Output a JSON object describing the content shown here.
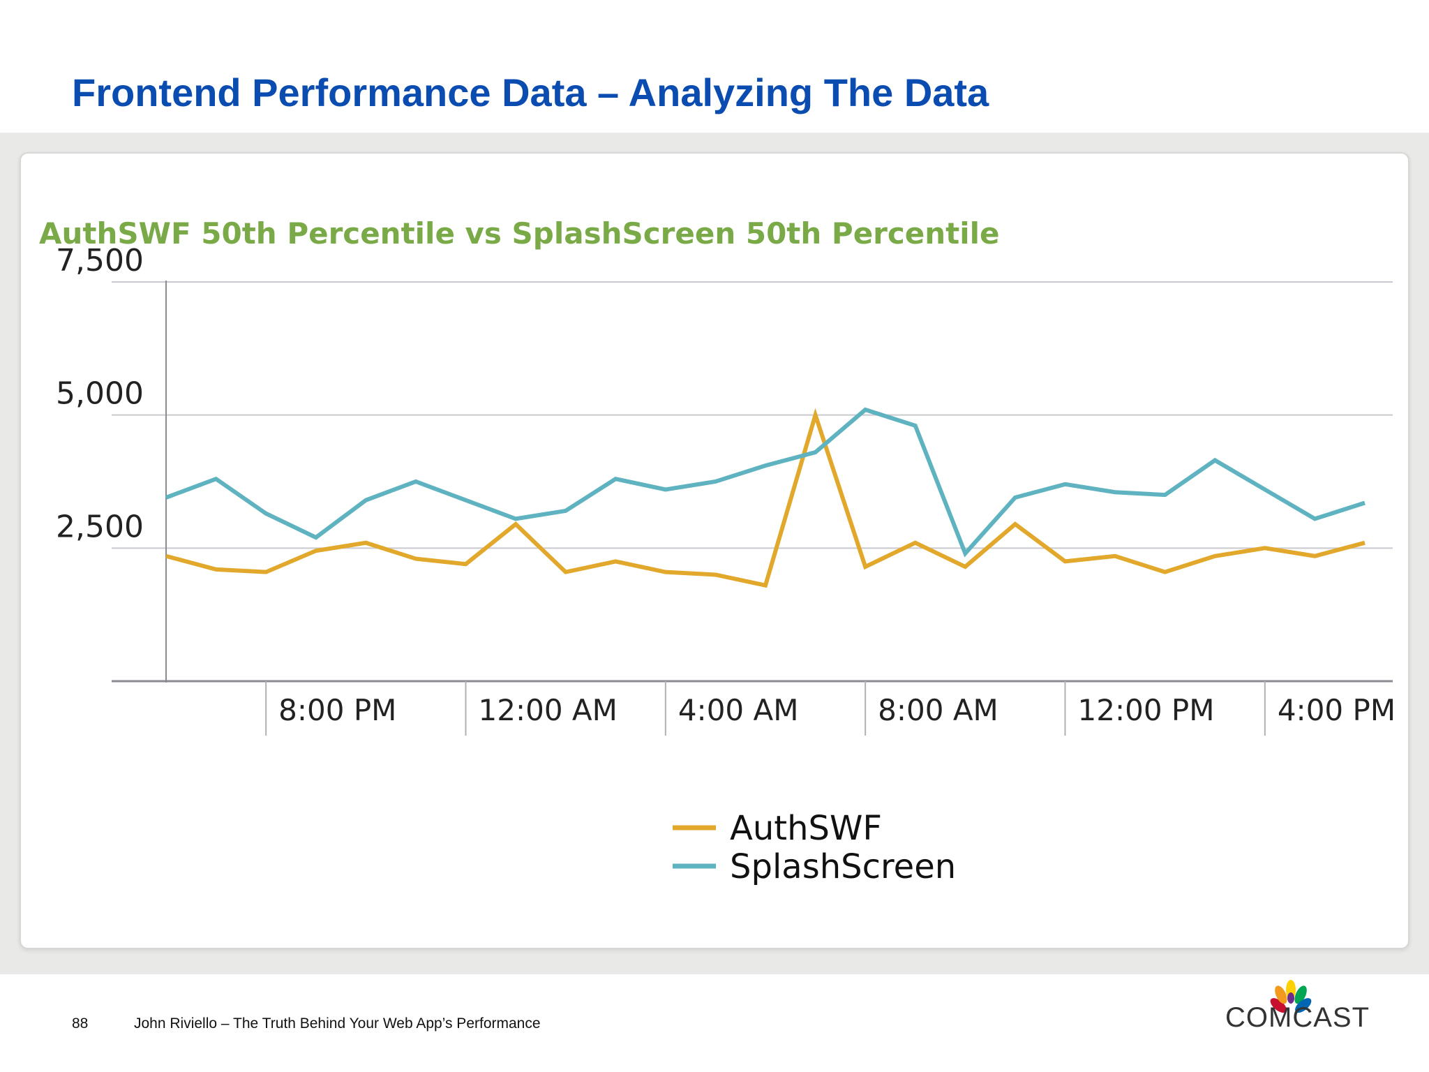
{
  "slide": {
    "title": "Frontend Performance Data – Analyzing The Data",
    "page_number": "88",
    "footer_text": "John Riviello – The Truth Behind Your Web App’s Performance",
    "logo_text": "COMCAST"
  },
  "chart_data": {
    "type": "line",
    "title": "AuthSWF 50th Percentile vs SplashScreen 50th Percentile",
    "xlabel": "",
    "ylabel": "",
    "ylim": [
      0,
      7500
    ],
    "yticks": [
      {
        "value": 2500,
        "label": "2,500"
      },
      {
        "value": 5000,
        "label": "5,000"
      },
      {
        "value": 7500,
        "label": "7,500"
      }
    ],
    "xlim": [
      0,
      24.4
    ],
    "xticks": [
      {
        "value": 2,
        "label": "8:00 PM"
      },
      {
        "value": 6,
        "label": "12:00 AM"
      },
      {
        "value": 10,
        "label": "4:00 AM"
      },
      {
        "value": 14,
        "label": "8:00 AM"
      },
      {
        "value": 18,
        "label": "12:00 PM"
      },
      {
        "value": 22,
        "label": "4:00 PM"
      }
    ],
    "grid": true,
    "legend_position": "bottom-center",
    "colors": {
      "AuthSWF": "#e2a82c",
      "SplashScreen": "#5fb3c0"
    },
    "x": [
      0,
      1,
      2,
      3,
      4,
      5,
      6,
      7,
      8,
      9,
      10,
      11,
      12,
      13,
      14,
      15,
      16,
      17,
      18,
      19,
      20,
      21,
      22,
      23,
      24
    ],
    "series": [
      {
        "name": "AuthSWF",
        "values": [
          2350,
          2100,
          2050,
          2450,
          2600,
          2300,
          2200,
          2950,
          2050,
          2250,
          2050,
          2000,
          1800,
          5000,
          2150,
          2600,
          2150,
          2950,
          2250,
          2350,
          2050,
          2350,
          2500,
          2350,
          2600
        ]
      },
      {
        "name": "SplashScreen",
        "values": [
          3450,
          3800,
          3150,
          2700,
          3400,
          3750,
          3400,
          3050,
          3200,
          3800,
          3600,
          3750,
          4050,
          4300,
          5100,
          4800,
          2400,
          3450,
          3700,
          3550,
          3500,
          4150,
          3600,
          3050,
          3350
        ]
      }
    ]
  }
}
